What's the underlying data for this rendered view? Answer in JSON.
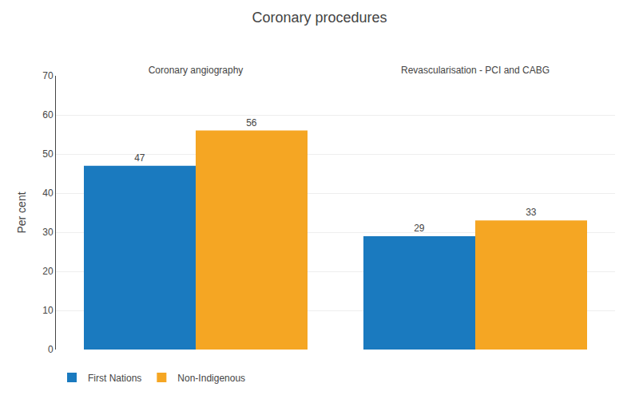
{
  "chart_data": {
    "type": "bar",
    "title": "Coronary procedures",
    "ylabel": "Per cent",
    "categories": [
      "Coronary angiography",
      "Revascularisation - PCI and CABG"
    ],
    "series": [
      {
        "name": "First Nations",
        "color": "#1a7abf",
        "values": [
          47,
          29
        ]
      },
      {
        "name": "Non-Indigenous",
        "color": "#f5a623",
        "values": [
          56,
          33
        ]
      }
    ],
    "ylim": [
      0,
      70
    ],
    "yticks": [
      0,
      10,
      20,
      30,
      40,
      50,
      60,
      70
    ],
    "grid": true,
    "data_labels": true,
    "legend": "lower left"
  }
}
